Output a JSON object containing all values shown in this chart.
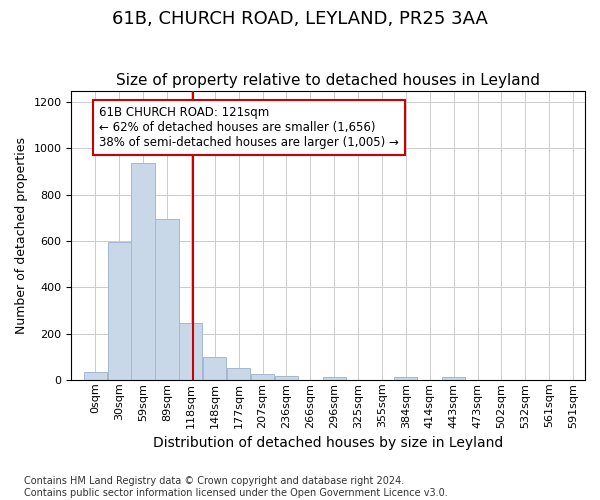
{
  "title": "61B, CHURCH ROAD, LEYLAND, PR25 3AA",
  "subtitle": "Size of property relative to detached houses in Leyland",
  "xlabel": "Distribution of detached houses by size in Leyland",
  "ylabel": "Number of detached properties",
  "bin_labels": [
    "0sqm",
    "30sqm",
    "59sqm",
    "89sqm",
    "118sqm",
    "148sqm",
    "177sqm",
    "207sqm",
    "236sqm",
    "266sqm",
    "296sqm",
    "325sqm",
    "355sqm",
    "384sqm",
    "414sqm",
    "443sqm",
    "473sqm",
    "502sqm",
    "532sqm",
    "561sqm",
    "591sqm"
  ],
  "bar_heights": [
    35,
    595,
    935,
    695,
    245,
    100,
    52,
    25,
    18,
    0,
    12,
    0,
    0,
    12,
    0,
    12,
    0,
    0,
    0,
    0,
    0
  ],
  "bar_color": "#c8d8e8",
  "bar_edgecolor": "#a0b8d0",
  "grid_color": "#cccccc",
  "vline_x_bin": 3.7,
  "annotation_text": "61B CHURCH ROAD: 121sqm\n← 62% of detached houses are smaller (1,656)\n38% of semi-detached houses are larger (1,005) →",
  "annotation_box_color": "#ffffff",
  "annotation_box_edgecolor": "#cc0000",
  "ylim": [
    0,
    1250
  ],
  "yticks": [
    0,
    200,
    400,
    600,
    800,
    1000,
    1200
  ],
  "footnote": "Contains HM Land Registry data © Crown copyright and database right 2024.\nContains public sector information licensed under the Open Government Licence v3.0.",
  "title_fontsize": 13,
  "subtitle_fontsize": 11,
  "xlabel_fontsize": 10,
  "ylabel_fontsize": 9,
  "tick_fontsize": 8,
  "annotation_fontsize": 8.5,
  "footnote_fontsize": 7
}
